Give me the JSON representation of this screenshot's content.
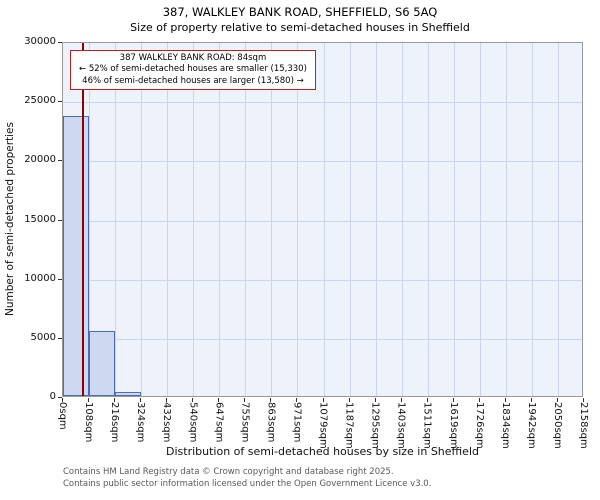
{
  "chart_data": {
    "type": "bar",
    "title": "387, WALKLEY BANK ROAD, SHEFFIELD, S6 5AQ",
    "subtitle": "Size of property relative to semi-detached houses in Sheffield",
    "xlabel": "Distribution of semi-detached houses by size in Sheffield",
    "ylabel": "Number of semi-detached properties",
    "categories": [
      "0sqm",
      "108sqm",
      "216sqm",
      "324sqm",
      "432sqm",
      "540sqm",
      "647sqm",
      "755sqm",
      "863sqm",
      "971sqm",
      "1079sqm",
      "1187sqm",
      "1295sqm",
      "1403sqm",
      "1511sqm",
      "1619sqm",
      "1726sqm",
      "1834sqm",
      "1942sqm",
      "2050sqm",
      "2158sqm"
    ],
    "values": [
      23700,
      5500,
      300,
      0,
      0,
      0,
      0,
      0,
      0,
      0,
      0,
      0,
      0,
      0,
      0,
      0,
      0,
      0,
      0,
      0
    ],
    "ylim": [
      0,
      30000
    ],
    "yticks": [
      0,
      5000,
      10000,
      15000,
      20000,
      25000,
      30000
    ],
    "grid": true,
    "legend": null,
    "marker": {
      "value_sqm": 84,
      "axis_max_sqm": 2158,
      "color": "#8b0000"
    },
    "annotation": {
      "line1": "387 WALKLEY BANK ROAD: 84sqm",
      "line2": "← 52% of semi-detached houses are smaller (15,330)",
      "line3": "46% of semi-detached houses are larger (13,580) →"
    }
  },
  "footer": {
    "line1": "Contains HM Land Registry data © Crown copyright and database right 2025.",
    "line2": "Contains public sector information licensed under the Open Government Licence v3.0."
  },
  "colors": {
    "bar_fill": "#ccd9f0",
    "bar_edge": "#4d6cb3",
    "marker_line": "#8b0000",
    "annotation_border": "#b22222",
    "grid": "#ccd5e8",
    "plot_bg": "#eef2fa"
  }
}
